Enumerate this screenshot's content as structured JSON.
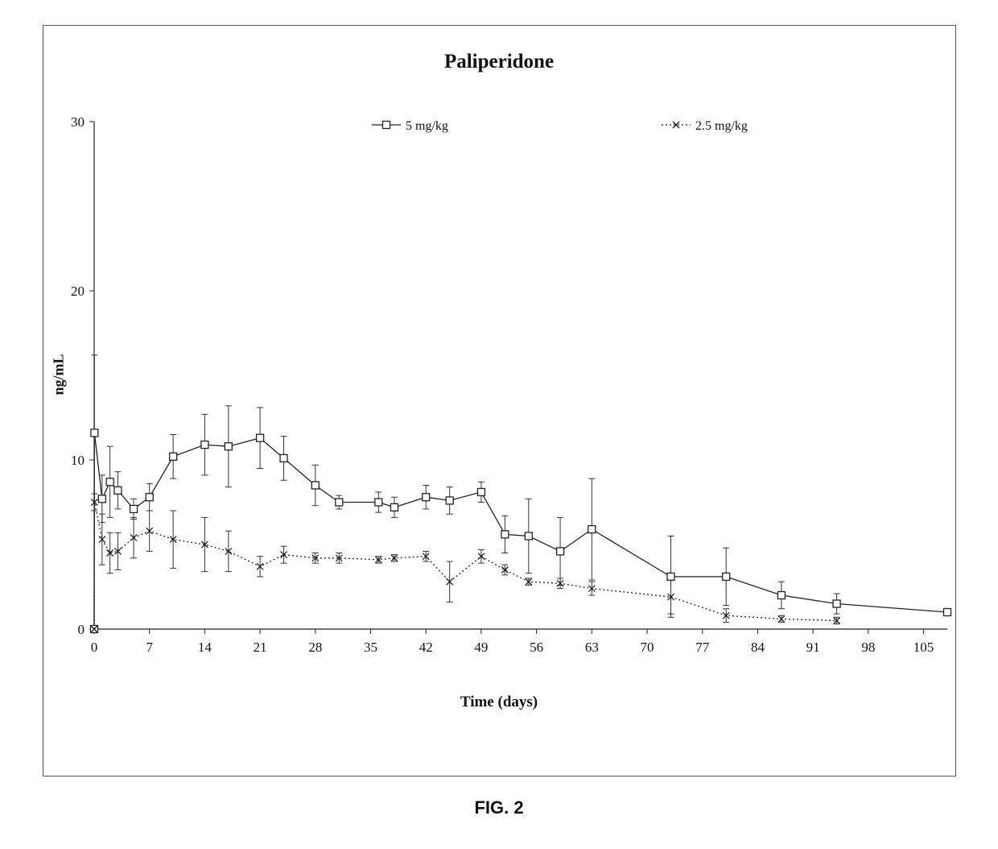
{
  "chart_data": {
    "type": "line",
    "title": "Paliperidone",
    "xlabel": "Time (days)",
    "ylabel": "ng/mL",
    "xlim": [
      0,
      108
    ],
    "ylim": [
      0,
      30
    ],
    "x_ticks": [
      0,
      7,
      14,
      21,
      28,
      35,
      42,
      49,
      56,
      63,
      70,
      77,
      84,
      91,
      98,
      105
    ],
    "x_tick_labels": [
      "0",
      "7",
      "14",
      "21",
      "28",
      "35",
      "42",
      "49",
      "56",
      "63",
      "70",
      "77",
      "84",
      "91",
      "98",
      "105"
    ],
    "y_ticks": [
      0,
      10,
      20,
      30
    ],
    "y_tick_labels": [
      "0",
      "10",
      "20",
      "30"
    ],
    "legend_position": "top",
    "grid": false,
    "series": [
      {
        "name": "5 mg/kg",
        "marker": "square",
        "line": "solid",
        "color": "#222222",
        "x": [
          0,
          0.04,
          1,
          2,
          3,
          5,
          7,
          10,
          14,
          17,
          21,
          24,
          28,
          31,
          36,
          38,
          42,
          45,
          49,
          52,
          55,
          59,
          63,
          73,
          80,
          87,
          94,
          108
        ],
        "y": [
          0,
          11.6,
          7.7,
          8.7,
          8.2,
          7.1,
          7.8,
          10.2,
          10.9,
          10.8,
          11.3,
          10.1,
          8.5,
          7.5,
          7.5,
          7.2,
          7.8,
          7.6,
          8.1,
          5.6,
          5.5,
          4.6,
          5.9,
          3.1,
          3.1,
          2.0,
          1.5,
          1.0
        ],
        "error": [
          0,
          4.6,
          1.4,
          2.1,
          1.1,
          0.6,
          0.8,
          1.3,
          1.8,
          2.4,
          1.8,
          1.3,
          1.2,
          0.4,
          0.6,
          0.6,
          0.7,
          0.8,
          0.6,
          1.1,
          2.2,
          2.0,
          3.0,
          2.4,
          1.7,
          0.8,
          0.6,
          0.1
        ]
      },
      {
        "name": "2.5 mg/kg",
        "marker": "x",
        "line": "dotted",
        "color": "#222222",
        "x": [
          0,
          0.04,
          1,
          2,
          3,
          5,
          7,
          10,
          14,
          17,
          21,
          24,
          28,
          31,
          36,
          38,
          42,
          45,
          49,
          52,
          55,
          59,
          63,
          73,
          80,
          87,
          94
        ],
        "y": [
          0,
          7.5,
          5.3,
          4.5,
          4.6,
          5.4,
          5.8,
          5.3,
          5.0,
          4.6,
          3.7,
          4.4,
          4.2,
          4.2,
          4.1,
          4.2,
          4.3,
          2.8,
          4.3,
          3.5,
          2.8,
          2.7,
          2.4,
          1.9,
          0.8,
          0.6,
          0.5
        ],
        "error": [
          0,
          0.5,
          1.5,
          1.2,
          1.1,
          1.2,
          1.2,
          1.7,
          1.6,
          1.2,
          0.6,
          0.5,
          0.3,
          0.3,
          0.2,
          0.2,
          0.3,
          1.2,
          0.4,
          0.3,
          0.2,
          0.3,
          0.4,
          1.0,
          0.4,
          0.2,
          0.2
        ]
      }
    ]
  },
  "figure_caption": "FIG. 2"
}
